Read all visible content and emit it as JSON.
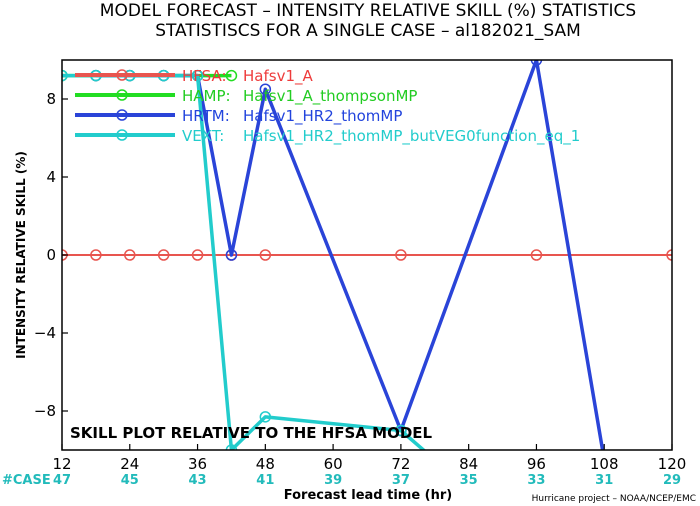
{
  "chart_data": {
    "type": "line",
    "title": "MODEL FORECAST – INTENSITY RELATIVE SKILL (%) STATISTICS",
    "subtitle": "STATISTISCS FOR A SINGLE CASE – al182021_SAM",
    "xlabel": "Forecast lead time (hr)",
    "ylabel": "INTENSITY RELATIVE SKILL (%)",
    "xlim": [
      12,
      120
    ],
    "ylim": [
      -10,
      10
    ],
    "xticks": [
      12,
      24,
      36,
      48,
      60,
      72,
      84,
      96,
      108,
      120
    ],
    "yticks": [
      -8,
      -4,
      0,
      4,
      8
    ],
    "case_label": "#CASE",
    "case_counts": [
      {
        "x": 12,
        "n": "47"
      },
      {
        "x": 24,
        "n": "45"
      },
      {
        "x": 36,
        "n": "43"
      },
      {
        "x": 48,
        "n": "41"
      },
      {
        "x": 60,
        "n": "39"
      },
      {
        "x": 72,
        "n": "37"
      },
      {
        "x": 84,
        "n": "35"
      },
      {
        "x": 96,
        "n": "33"
      },
      {
        "x": 108,
        "n": "31"
      },
      {
        "x": 120,
        "n": "29"
      }
    ],
    "annotation": "SKILL PLOT RELATIVE TO THE HFSA MODEL",
    "credit": "Hurricane project – NOAA/NCEP/EMC",
    "grid": false,
    "legend_position": "top-left",
    "series": [
      {
        "name": "HFSA:",
        "desc": "Hafsv1_A",
        "color": "#e8554f",
        "text_color": "#ee3b3b",
        "points": [
          [
            12,
            0
          ],
          [
            18,
            0
          ],
          [
            24,
            0
          ],
          [
            30,
            0
          ],
          [
            36,
            0
          ],
          [
            42,
            0
          ],
          [
            48,
            0
          ],
          [
            72,
            0
          ],
          [
            96,
            0
          ],
          [
            120,
            0
          ]
        ]
      },
      {
        "name": "HAMP:",
        "desc": "Hafsv1_A_thompsonMP",
        "color": "#22dd22",
        "text_color": "#22cc22",
        "points": [
          [
            12,
            9.2
          ],
          [
            18,
            9.2
          ],
          [
            24,
            9.2
          ],
          [
            30,
            9.2
          ],
          [
            36,
            9.2
          ],
          [
            42,
            9.2
          ]
        ]
      },
      {
        "name": "HRTM:",
        "desc": "Hafsv1_HR2_thomMP",
        "color": "#2a44d8",
        "text_color": "#2244dd",
        "points": [
          [
            18,
            9.2
          ],
          [
            24,
            9.2
          ],
          [
            30,
            9.2
          ],
          [
            36,
            9.2
          ],
          [
            42,
            0
          ],
          [
            48,
            8.5
          ],
          [
            72,
            -9
          ],
          [
            96,
            10
          ],
          [
            108,
            -10.5
          ]
        ]
      },
      {
        "name": "VEXT:",
        "desc": "Hafsv1_HR2_thomMP_butVEG0function_eq_1",
        "color": "#22cccc",
        "text_color": "#22cccc",
        "points": [
          [
            12,
            9.2
          ],
          [
            18,
            9.2
          ],
          [
            24,
            9.2
          ],
          [
            30,
            9.2
          ],
          [
            36,
            9.2
          ],
          [
            42,
            -10
          ],
          [
            48,
            -8.3
          ],
          [
            72,
            -9
          ],
          [
            78,
            -10.5
          ]
        ]
      }
    ]
  }
}
